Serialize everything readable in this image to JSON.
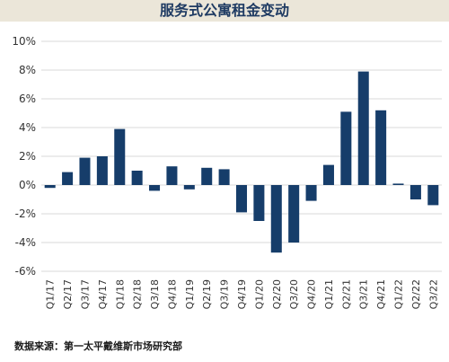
{
  "header": {
    "title": "服务式公寓租金变动"
  },
  "footer": {
    "source": "数据来源：第一太平戴维斯市场研究部"
  },
  "colors": {
    "bar": "#163d6a",
    "band": "#ebe6d9",
    "title": "#1f3b63",
    "grid": "#d9d9d9"
  },
  "chart_data": {
    "type": "bar",
    "title": "服务式公寓租金变动",
    "xlabel": "",
    "ylabel": "",
    "ylim": [
      -6,
      10
    ],
    "yticks": [
      "-6%",
      "-4%",
      "-2%",
      "0%",
      "2%",
      "4%",
      "6%",
      "8%",
      "10%"
    ],
    "grid": true,
    "legend": "none",
    "categories": [
      "Q1/17",
      "Q2/17",
      "Q3/17",
      "Q4/17",
      "Q1/18",
      "Q2/18",
      "Q3/18",
      "Q4/18",
      "Q1/19",
      "Q2/19",
      "Q3/19",
      "Q4/19",
      "Q1/20",
      "Q2/20",
      "Q3/20",
      "Q4/20",
      "Q1/21",
      "Q2/21",
      "Q3/21",
      "Q4/21",
      "Q1/22",
      "Q2/22",
      "Q3/22"
    ],
    "values": [
      -0.2,
      0.9,
      1.9,
      2.0,
      3.9,
      1.0,
      -0.4,
      1.3,
      -0.3,
      1.2,
      1.1,
      -1.9,
      -2.5,
      -4.7,
      -4.0,
      -1.1,
      1.4,
      5.1,
      7.9,
      5.2,
      0.1,
      -1.0,
      -1.4
    ],
    "x_tick_labels": [
      "Q1/17",
      "Q2/17",
      "Q3/17",
      "Q4/17",
      "Q1/18",
      "Q2/18",
      "Q3/18",
      "Q4/18",
      "Q1/19",
      "Q2/19",
      "Q3/19",
      "Q4/19",
      "Q1/20",
      "Q2/20",
      "Q3/20",
      "Q4/20",
      "Q1/21",
      "Q2/21",
      "Q3/21",
      "Q4/21",
      "Q1/22",
      "Q2/22",
      "Q3/22"
    ]
  }
}
